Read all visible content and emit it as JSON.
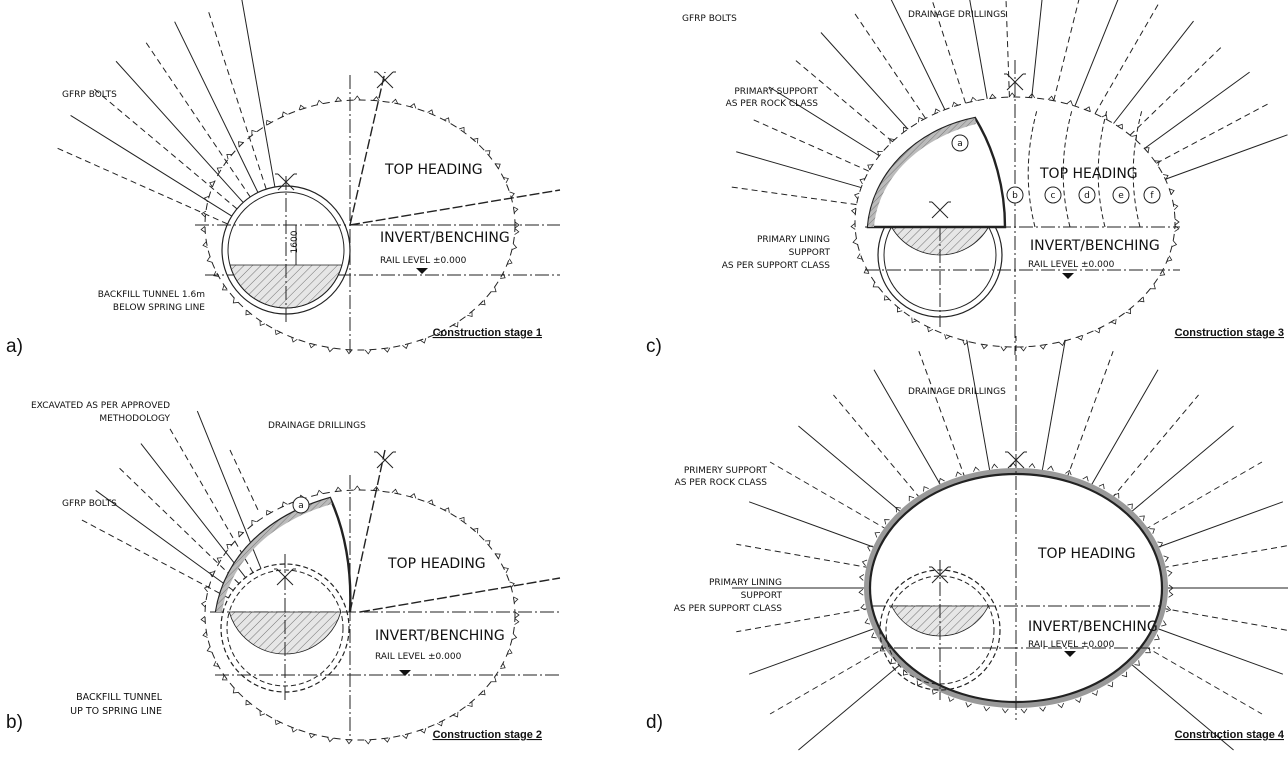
{
  "panels": [
    {
      "letter": "a)",
      "caption": "Construction stage 1",
      "labels": [
        "GFRP BOLTS",
        "TOP HEADING",
        "1600",
        "INVERT/BENCHING",
        "RAIL LEVEL ±0.000",
        "BACKFILL TUNNEL 1.6m",
        "BELOW SPRING LINE"
      ]
    },
    {
      "letter": "b)",
      "caption": "Construction stage 2",
      "labels": [
        "EXCAVATED AS PER APPROVED",
        "METHODOLOGY",
        "DRAINAGE DRILLINGS",
        "GFRP BOLTS",
        "a",
        "TOP HEADING",
        "INVERT/BENCHING",
        "RAIL LEVEL ±0.000",
        "BACKFILL TUNNEL",
        "UP TO SPRING LINE"
      ]
    },
    {
      "letter": "c)",
      "caption": "Construction stage 3",
      "labels": [
        "GFRP BOLTS",
        "DRAINAGE DRILLINGS",
        "PRIMARY SUPPORT",
        "AS PER ROCK CLASS",
        "a",
        "TOP HEADING",
        "b",
        "c",
        "d",
        "e",
        "f",
        "PRIMARY LINING",
        "SUPPORT",
        "AS PER SUPPORT CLASS",
        "INVERT/BENCHING",
        "RAIL LEVEL ±0.000"
      ]
    },
    {
      "letter": "d)",
      "caption": "Construction stage 4",
      "labels": [
        "DRAINAGE DRILLINGS",
        "PRIMERY SUPPORT",
        "AS PER ROCK CLASS",
        "TOP HEADING",
        "PRIMARY LINING",
        "SUPPORT",
        "AS PER SUPPORT CLASS",
        "INVERT/BENCHING",
        "RAIL LEVEL ±0.000"
      ]
    }
  ]
}
